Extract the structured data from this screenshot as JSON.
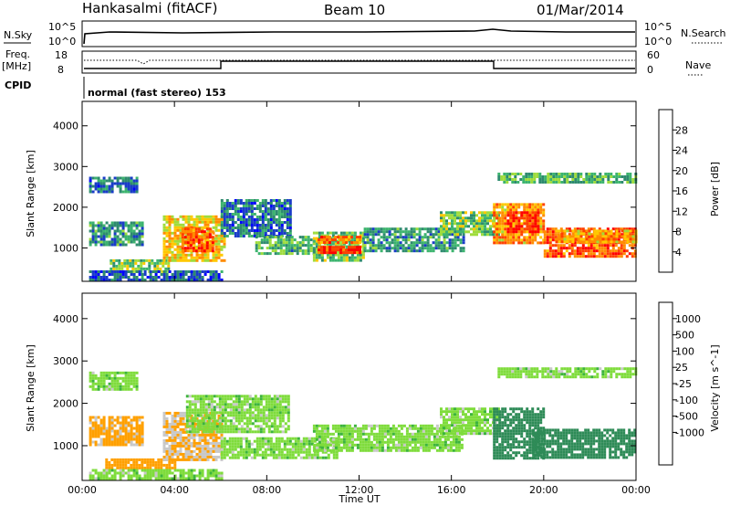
{
  "header": {
    "station": "Hankasalmi (fitACF)",
    "beam": "Beam 10",
    "date": "01/Mar/2014"
  },
  "status_panel": {
    "nsky_label": "N.Sky",
    "nsearch_label": "N.Search",
    "freq_label": "Freq.",
    "freq_unit": "[MHz]",
    "nave_label": "Nave",
    "cpid_label": "CPID",
    "noise_ticks": [
      "10^5",
      "10^0"
    ],
    "noise_right_ticks": [
      "10^5",
      "10^0"
    ],
    "freq_ticks": [
      "18",
      "8"
    ],
    "nave_ticks": [
      "60",
      "0"
    ],
    "cpid_text": "normal (fast stereo) 153"
  },
  "chart_data": [
    {
      "type": "heatmap",
      "name": "power",
      "ylabel": "Slant Range [km]",
      "xlabel": "",
      "colorbar_label": "Power [dB]",
      "x_ticks": [
        "00:00",
        "04:00",
        "08:00",
        "12:00",
        "16:00",
        "20:00",
        "00:00"
      ],
      "x_range_hours": [
        0,
        24
      ],
      "y_ticks": [
        1000,
        2000,
        3000,
        4000
      ],
      "ylim": [
        180,
        4600
      ],
      "colorbar_ticks": [
        "4",
        "8",
        "12",
        "16",
        "20",
        "24",
        "28"
      ],
      "colorbar_range": [
        0,
        32
      ],
      "colors": [
        "#0000ff",
        "#1a3cc8",
        "#2e8b6e",
        "#3cb46e",
        "#9fdc3c",
        "#ffc800",
        "#ff8c00",
        "#ff4000",
        "#ff0000"
      ],
      "bands": [
        {
          "t": [
            0.3,
            2.6
          ],
          "r": [
            1050,
            1650
          ],
          "value": 10
        },
        {
          "t": [
            0.3,
            2.4
          ],
          "r": [
            2350,
            2750
          ],
          "value": 8
        },
        {
          "t": [
            1.2,
            3.8
          ],
          "r": [
            420,
            720
          ],
          "value": 15
        },
        {
          "t": [
            3.5,
            6.2
          ],
          "r": [
            700,
            1800
          ],
          "value": 20
        },
        {
          "t": [
            4.3,
            5.7
          ],
          "r": [
            900,
            1500
          ],
          "value": 26
        },
        {
          "t": [
            6.0,
            9.0
          ],
          "r": [
            1300,
            2200
          ],
          "value": 8
        },
        {
          "t": [
            7.5,
            10.0
          ],
          "r": [
            850,
            1300
          ],
          "value": 12
        },
        {
          "t": [
            10.0,
            12.2
          ],
          "r": [
            700,
            1400
          ],
          "value": 14
        },
        {
          "t": [
            10.2,
            12.0
          ],
          "r": [
            850,
            1050
          ],
          "value": 28
        },
        {
          "t": [
            10.2,
            12.0
          ],
          "r": [
            1100,
            1300
          ],
          "value": 24
        },
        {
          "t": [
            12.2,
            16.5
          ],
          "r": [
            950,
            1500
          ],
          "value": 10
        },
        {
          "t": [
            15.5,
            18.0
          ],
          "r": [
            1350,
            1900
          ],
          "value": 14
        },
        {
          "t": [
            17.8,
            20.0
          ],
          "r": [
            1100,
            2100
          ],
          "value": 22
        },
        {
          "t": [
            18.4,
            19.8
          ],
          "r": [
            1400,
            1900
          ],
          "value": 28
        },
        {
          "t": [
            18.0,
            24.0
          ],
          "r": [
            2600,
            2850
          ],
          "value": 12
        },
        {
          "t": [
            20.0,
            24.0
          ],
          "r": [
            800,
            1500
          ],
          "value": 26
        },
        {
          "t": [
            20.5,
            24.0
          ],
          "r": [
            1150,
            1450
          ],
          "value": 22
        },
        {
          "t": [
            0.3,
            6.0
          ],
          "r": [
            200,
            450
          ],
          "value": 6
        }
      ]
    },
    {
      "type": "heatmap",
      "name": "velocity",
      "ylabel": "Slant Range [km]",
      "xlabel": "Time UT",
      "colorbar_label": "Velocity [m s^-1]",
      "x_ticks": [
        "00:00",
        "04:00",
        "08:00",
        "12:00",
        "16:00",
        "20:00",
        "00:00"
      ],
      "x_range_hours": [
        0,
        24
      ],
      "y_ticks": [
        1000,
        2000,
        3000,
        4000
      ],
      "ylim": [
        180,
        4600
      ],
      "colorbar_ticks": [
        "1000",
        "500",
        "100",
        "25",
        "-25",
        "-100",
        "-500",
        "-1000"
      ],
      "colors": [
        "#1e32c8",
        "#2a6ea0",
        "#2e8b57",
        "#3cb43c",
        "#7fdc3c",
        "#c8c8c8",
        "#ffa000",
        "#ff6400",
        "#ff3200",
        "#ff0000"
      ],
      "bands": [
        {
          "t": [
            0.3,
            2.6
          ],
          "r": [
            1050,
            1700
          ],
          "value": -120
        },
        {
          "t": [
            0.3,
            2.4
          ],
          "r": [
            2350,
            2750
          ],
          "value": 0
        },
        {
          "t": [
            1.0,
            4.0
          ],
          "r": [
            450,
            700
          ],
          "value": -150
        },
        {
          "t": [
            3.5,
            6.0
          ],
          "r": [
            700,
            1800
          ],
          "value": -100
        },
        {
          "t": [
            4.5,
            9.0
          ],
          "r": [
            1300,
            2200
          ],
          "value": 0
        },
        {
          "t": [
            6.0,
            11.0
          ],
          "r": [
            700,
            1200
          ],
          "value": 0
        },
        {
          "t": [
            10.0,
            16.5
          ],
          "r": [
            900,
            1500
          ],
          "value": 0
        },
        {
          "t": [
            15.5,
            18.0
          ],
          "r": [
            1300,
            1900
          ],
          "value": 0
        },
        {
          "t": [
            17.8,
            20.0
          ],
          "r": [
            700,
            1900
          ],
          "value": 200
        },
        {
          "t": [
            18.0,
            24.0
          ],
          "r": [
            2600,
            2850
          ],
          "value": 0
        },
        {
          "t": [
            19.5,
            24.0
          ],
          "r": [
            700,
            1400
          ],
          "value": 150
        },
        {
          "t": [
            0.3,
            6.0
          ],
          "r": [
            200,
            450
          ],
          "value": 0
        }
      ]
    }
  ]
}
